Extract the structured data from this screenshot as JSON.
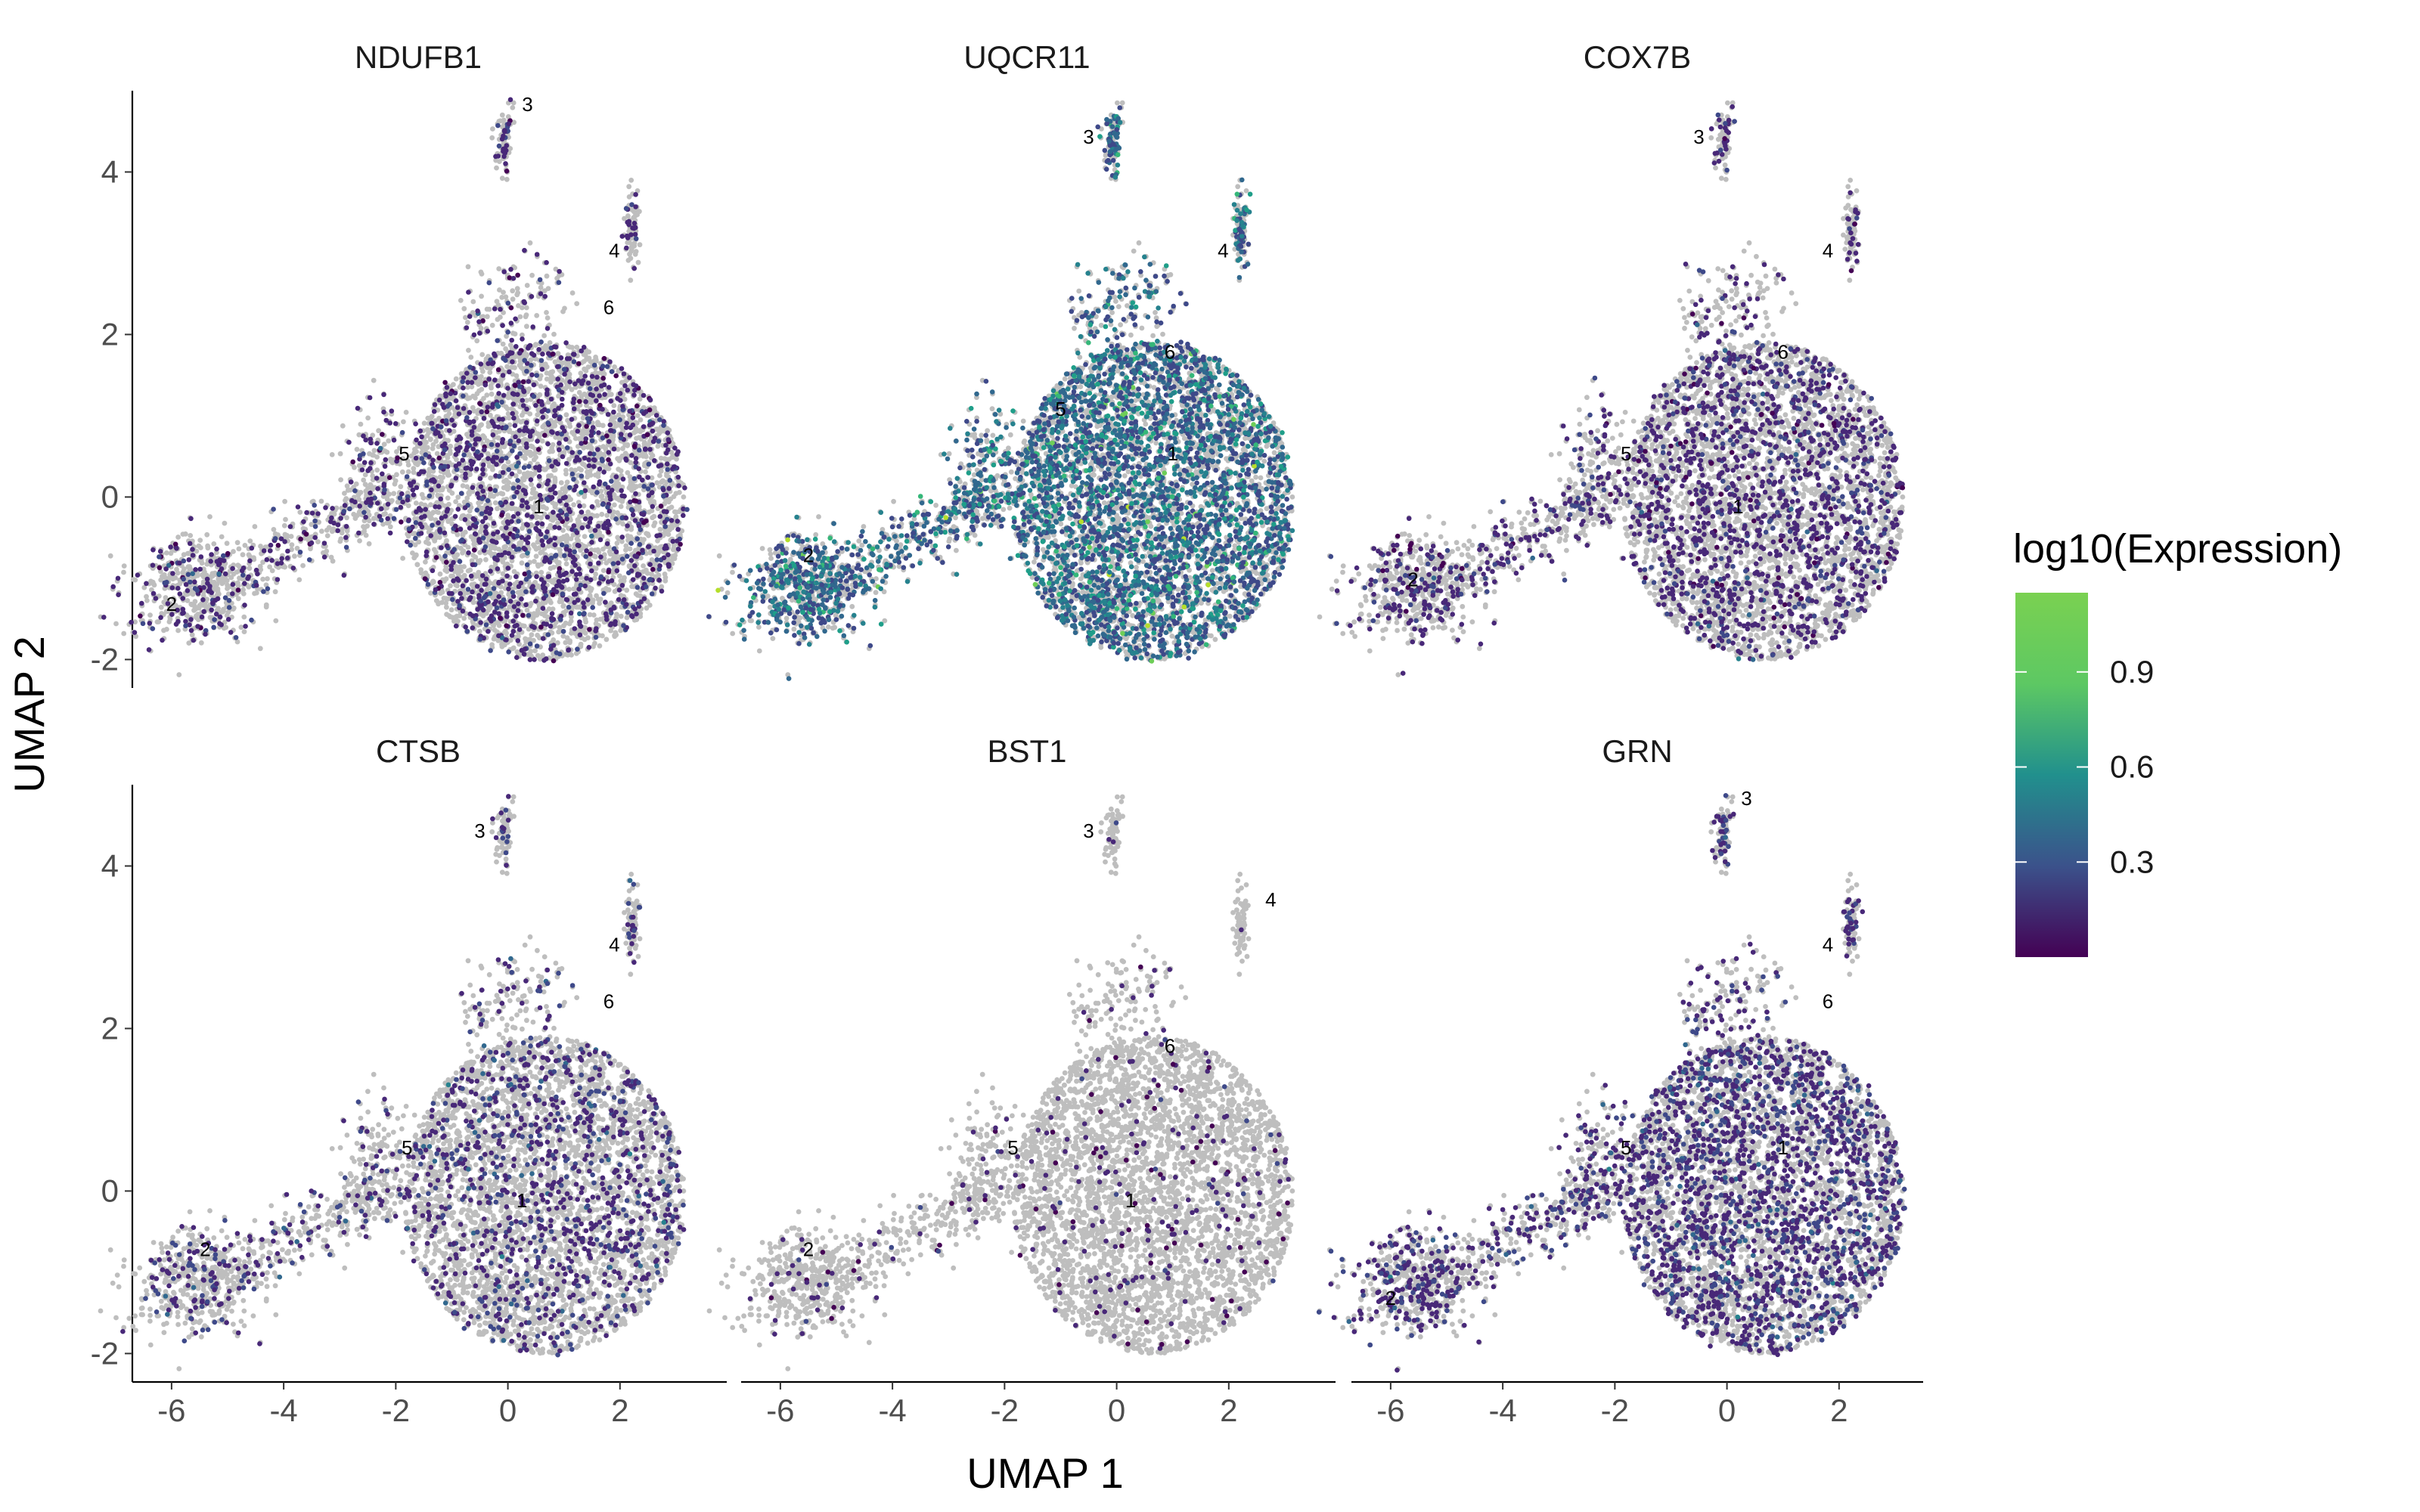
{
  "chart_data": {
    "type": "scatter",
    "xlabel": "UMAP 1",
    "ylabel": "UMAP 2",
    "xlim": [
      -6.7,
      3.5
    ],
    "ylim": [
      -2.35,
      5.0
    ],
    "x_ticks": [
      -6,
      -4,
      -2,
      0,
      2
    ],
    "y_ticks": [
      -2,
      0,
      2,
      4
    ],
    "x_tick_labels": [
      "-6",
      "-4",
      "-2",
      "0",
      "2"
    ],
    "y_tick_labels": [
      "-2",
      "0",
      "2",
      "4"
    ],
    "background_point_color": "#bebebe",
    "colorscale": [
      "#440154",
      "#3b528b",
      "#21908d",
      "#5dc863",
      "#7ad151"
    ],
    "legend": {
      "title": "log10(Expression)",
      "ticks": [
        0.3,
        0.6,
        0.9
      ],
      "tick_labels": [
        "0.3",
        "0.6",
        "0.9"
      ],
      "range": [
        0.0,
        1.15
      ],
      "placement": "right"
    },
    "panels": [
      {
        "gene": "NDUFB1",
        "density": 0.33,
        "mean_expr": 0.12,
        "clusters": [
          {
            "label": "3",
            "x": 0.35,
            "y": 4.75
          },
          {
            "label": "4",
            "x": 1.9,
            "y": 2.95
          },
          {
            "label": "6",
            "x": 1.8,
            "y": 2.25
          },
          {
            "label": "5",
            "x": -1.85,
            "y": 0.45
          },
          {
            "label": "1",
            "x": 0.55,
            "y": -0.2
          },
          {
            "label": "2",
            "x": -6.0,
            "y": -1.4
          }
        ]
      },
      {
        "gene": "UQCR11",
        "density": 0.82,
        "mean_expr": 0.27,
        "clusters": [
          {
            "label": "3",
            "x": -0.5,
            "y": 4.35
          },
          {
            "label": "4",
            "x": 1.9,
            "y": 2.95
          },
          {
            "label": "6",
            "x": 0.95,
            "y": 1.7
          },
          {
            "label": "5",
            "x": -1.0,
            "y": 1.0
          },
          {
            "label": "1",
            "x": 1.0,
            "y": 0.45
          },
          {
            "label": "2",
            "x": -5.5,
            "y": -0.8
          }
        ]
      },
      {
        "gene": "COX7B",
        "density": 0.36,
        "mean_expr": 0.12,
        "clusters": [
          {
            "label": "3",
            "x": -0.5,
            "y": 4.35
          },
          {
            "label": "4",
            "x": 1.8,
            "y": 2.95
          },
          {
            "label": "6",
            "x": 1.0,
            "y": 1.7
          },
          {
            "label": "5",
            "x": -1.8,
            "y": 0.45
          },
          {
            "label": "1",
            "x": 0.2,
            "y": -0.2
          },
          {
            "label": "2",
            "x": -5.6,
            "y": -1.1
          }
        ]
      },
      {
        "gene": "CTSB",
        "density": 0.26,
        "mean_expr": 0.14,
        "clusters": [
          {
            "label": "3",
            "x": -0.5,
            "y": 4.35
          },
          {
            "label": "4",
            "x": 1.9,
            "y": 2.95
          },
          {
            "label": "6",
            "x": 1.8,
            "y": 2.25
          },
          {
            "label": "5",
            "x": -1.8,
            "y": 0.45
          },
          {
            "label": "1",
            "x": 0.25,
            "y": -0.2
          },
          {
            "label": "2",
            "x": -5.4,
            "y": -0.8
          }
        ]
      },
      {
        "gene": "BST1",
        "density": 0.06,
        "mean_expr": 0.1,
        "clusters": [
          {
            "label": "3",
            "x": -0.5,
            "y": 4.35
          },
          {
            "label": "4",
            "x": 2.75,
            "y": 3.5
          },
          {
            "label": "6",
            "x": 0.95,
            "y": 1.7
          },
          {
            "label": "5",
            "x": -1.85,
            "y": 0.45
          },
          {
            "label": "1",
            "x": 0.25,
            "y": -0.2
          },
          {
            "label": "2",
            "x": -5.5,
            "y": -0.8
          }
        ]
      },
      {
        "gene": "GRN",
        "density": 0.48,
        "mean_expr": 0.14,
        "clusters": [
          {
            "label": "3",
            "x": 0.35,
            "y": 4.75
          },
          {
            "label": "4",
            "x": 1.8,
            "y": 2.95
          },
          {
            "label": "6",
            "x": 1.8,
            "y": 2.25
          },
          {
            "label": "5",
            "x": -1.8,
            "y": 0.45
          },
          {
            "label": "1",
            "x": 1.0,
            "y": 0.45
          },
          {
            "label": "2",
            "x": -6.0,
            "y": -1.4
          }
        ]
      }
    ]
  }
}
